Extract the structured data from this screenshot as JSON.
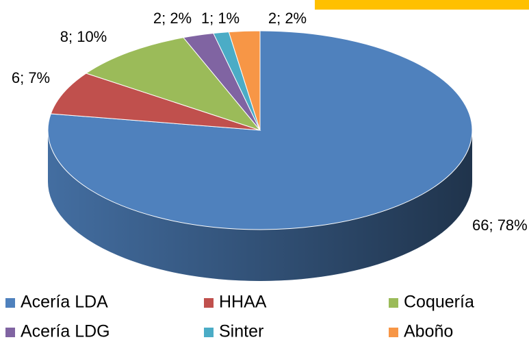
{
  "chart_data": {
    "type": "pie",
    "categories": [
      "Acería LDA",
      "HHAA",
      "Coquería",
      "Acería LDG",
      "Sinter",
      "Aboño"
    ],
    "values": [
      66,
      6,
      8,
      2,
      1,
      2
    ],
    "value_labels": [
      "66; 78%",
      "6; 7%",
      "8; 10%",
      "2; 2%",
      "1; 1%",
      "2; 2%"
    ],
    "colors": [
      "#4f81bd",
      "#c0504d",
      "#9bbb59",
      "#8064a2",
      "#4bacc6",
      "#f79646"
    ],
    "legend": "bottom"
  }
}
